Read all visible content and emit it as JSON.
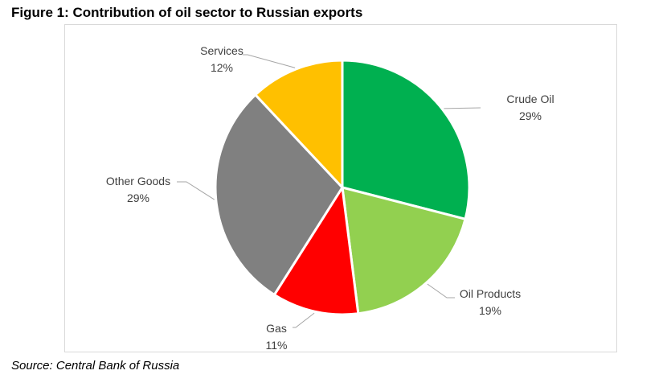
{
  "figure": {
    "title": "Figure 1: Contribution of oil sector to Russian exports",
    "source": "Source: Central Bank of Russia"
  },
  "chart_data": {
    "type": "pie",
    "title": "Figure 1: Contribution of oil sector to Russian exports",
    "slices": [
      {
        "label": "Crude Oil",
        "value": 29,
        "display": "29%",
        "color": "#00b050"
      },
      {
        "label": "Oil Products",
        "value": 19,
        "display": "19%",
        "color": "#92d050"
      },
      {
        "label": "Gas",
        "value": 11,
        "display": "11%",
        "color": "#ff0000"
      },
      {
        "label": "Other Goods",
        "value": 29,
        "display": "29%",
        "color": "#808080"
      },
      {
        "label": "Services",
        "value": 12,
        "display": "12%",
        "color": "#ffc000"
      }
    ],
    "start": "12 o'clock",
    "direction": "clockwise",
    "legend": "none",
    "data_labels": "outside with leader lines"
  }
}
